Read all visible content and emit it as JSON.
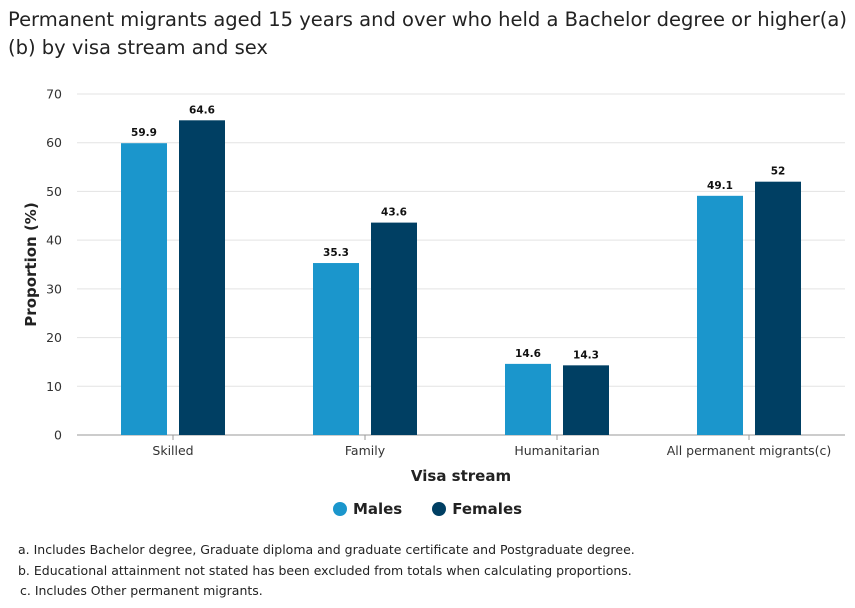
{
  "title": "Permanent migrants aged 15 years and over who held a Bachelor degree or higher(a)(b) by visa stream and sex",
  "colors": {
    "males": "#1b96cc",
    "females": "#003f63",
    "grid": "#e3e3e3",
    "axis": "#9a9a9a"
  },
  "chart_data": {
    "type": "bar",
    "categories": [
      "Skilled",
      "Family",
      "Humanitarian",
      "All permanent migrants(c)"
    ],
    "series": [
      {
        "name": "Males",
        "values": [
          59.9,
          35.3,
          14.6,
          49.1
        ],
        "labels": [
          "59.9",
          "35.3",
          "14.6",
          "49.1"
        ]
      },
      {
        "name": "Females",
        "values": [
          64.6,
          43.6,
          14.3,
          52
        ],
        "labels": [
          "64.6",
          "43.6",
          "14.3",
          "52"
        ]
      }
    ],
    "xlabel": "Visa stream",
    "ylabel": "Proportion (%)",
    "ylim": [
      0,
      70
    ],
    "yticks": [
      "0",
      "10",
      "20",
      "30",
      "40",
      "50",
      "60",
      "70"
    ],
    "grid": true,
    "legend": "bottom"
  },
  "notes": [
    "a. Includes Bachelor degree, Graduate diploma and graduate certificate and Postgraduate degree.",
    "b. Educational attainment not stated has been excluded from totals when calculating proportions.",
    "c. Includes Other permanent migrants."
  ]
}
